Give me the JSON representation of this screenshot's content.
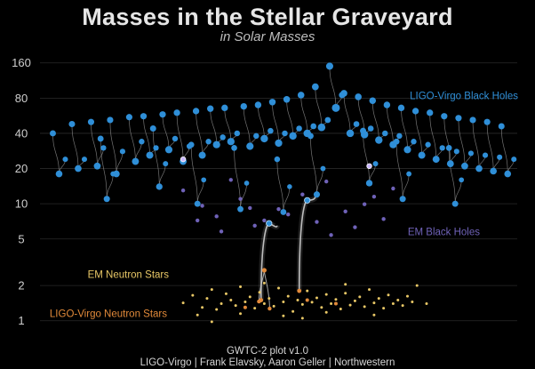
{
  "title": "Masses in the Stellar Graveyard",
  "subtitle": "in Solar Masses",
  "footer": {
    "line1": "GWTC-2 plot v1.0",
    "line2": "LIGO-Virgo | Frank Elavsky, Aaron Geller | Northwestern"
  },
  "colors": {
    "background": "#000000",
    "ligo_bh": "#2f8fd8",
    "em_bh": "#6f62b8",
    "em_ns": "#e8c766",
    "ligo_ns": "#e28a3a",
    "mystery": "#c8b6ff",
    "merger_line": "#9a9a9a",
    "ns_merger_line": "#cfcfcf"
  },
  "chart_data": {
    "type": "scatter",
    "title": "Masses in the Stellar Graveyard",
    "subtitle": "in Solar Masses",
    "y_scale": "log",
    "yticks": [
      1,
      2,
      5,
      10,
      20,
      40,
      80,
      160
    ],
    "ylim": [
      0.85,
      200
    ],
    "grid": true,
    "series_labels": [
      {
        "name": "LIGO-Virgo Black Holes",
        "series": "ligo_bh",
        "y": 84
      },
      {
        "name": "EM Black Holes",
        "series": "em_bh",
        "y": 5.8
      },
      {
        "name": "EM Neutron Stars",
        "series": "em_ns",
        "y": 2.5
      },
      {
        "name": "LIGO-Virgo Neutron Stars",
        "series": "ligo_ns",
        "y": 1.15
      }
    ],
    "ligo_mergers": [
      {
        "x": 0.04,
        "m1": 40,
        "m2": 24,
        "mf": 18
      },
      {
        "x": 0.08,
        "m1": 48,
        "m2": 24,
        "mf": 20
      },
      {
        "x": 0.12,
        "m1": 50,
        "m2": 30,
        "mf": 21
      },
      {
        "x": 0.16,
        "m1": 52,
        "m2": 28,
        "mf": 18
      },
      {
        "x": 0.2,
        "m1": 55,
        "m2": 34,
        "mf": 23
      },
      {
        "x": 0.23,
        "m1": 56,
        "m2": 30,
        "mf": 26
      },
      {
        "x": 0.27,
        "m1": 58,
        "m2": 36,
        "mf": 29
      },
      {
        "x": 0.3,
        "m1": 60,
        "m2": 31,
        "mf": 23
      },
      {
        "x": 0.34,
        "m1": 62,
        "m2": 34,
        "mf": 26
      },
      {
        "x": 0.37,
        "m1": 65,
        "m2": 37,
        "mf": 32
      },
      {
        "x": 0.4,
        "m1": 66,
        "m2": 40,
        "mf": 34
      },
      {
        "x": 0.44,
        "m1": 68,
        "m2": 38,
        "mf": 31
      },
      {
        "x": 0.47,
        "m1": 70,
        "m2": 42,
        "mf": 36
      },
      {
        "x": 0.5,
        "m1": 74,
        "m2": 40,
        "mf": 33
      },
      {
        "x": 0.53,
        "m1": 78,
        "m2": 44,
        "mf": 38
      },
      {
        "x": 0.56,
        "m1": 85,
        "m2": 46,
        "mf": 40
      },
      {
        "x": 0.59,
        "m1": 100,
        "m2": 52,
        "mf": 45
      },
      {
        "x": 0.62,
        "m1": 150,
        "m2": 85,
        "mf": 66
      },
      {
        "x": 0.65,
        "m1": 88,
        "m2": 48,
        "mf": 40
      },
      {
        "x": 0.68,
        "m1": 82,
        "m2": 44,
        "mf": 39
      },
      {
        "x": 0.71,
        "m1": 76,
        "m2": 40,
        "mf": 35
      },
      {
        "x": 0.74,
        "m1": 70,
        "m2": 38,
        "mf": 32
      },
      {
        "x": 0.77,
        "m1": 66,
        "m2": 34,
        "mf": 29
      },
      {
        "x": 0.8,
        "m1": 62,
        "m2": 32,
        "mf": 26
      },
      {
        "x": 0.83,
        "m1": 60,
        "m2": 30,
        "mf": 24
      },
      {
        "x": 0.86,
        "m1": 56,
        "m2": 28,
        "mf": 22
      },
      {
        "x": 0.89,
        "m1": 54,
        "m2": 27,
        "mf": 21
      },
      {
        "x": 0.92,
        "m1": 52,
        "m2": 26,
        "mf": 20
      },
      {
        "x": 0.95,
        "m1": 50,
        "m2": 25,
        "mf": 19
      },
      {
        "x": 0.98,
        "m1": 46,
        "m2": 24,
        "mf": 18
      },
      {
        "x": 0.14,
        "m1": 36,
        "m2": 18,
        "mf": 11
      },
      {
        "x": 0.33,
        "m1": 32,
        "m2": 16,
        "mf": 10
      },
      {
        "x": 0.42,
        "m1": 30,
        "m2": 15,
        "mf": 9
      },
      {
        "x": 0.58,
        "m1": 38,
        "m2": 20,
        "mf": 12
      },
      {
        "x": 0.76,
        "m1": 34,
        "m2": 18,
        "mf": 11
      },
      {
        "x": 0.87,
        "m1": 30,
        "m2": 16,
        "mf": 10
      },
      {
        "x": 0.25,
        "m1": 44,
        "m2": 22,
        "mf": 14
      },
      {
        "x": 0.69,
        "m1": 42,
        "m2": 22,
        "mf": 15
      },
      {
        "x": 0.51,
        "m1": 24,
        "m2": 14,
        "mf": 8.5
      }
    ],
    "em_black_holes": [
      [
        0.3,
        13
      ],
      [
        0.34,
        9.6
      ],
      [
        0.37,
        7.8
      ],
      [
        0.4,
        16
      ],
      [
        0.42,
        11
      ],
      [
        0.45,
        6.5
      ],
      [
        0.47,
        7.2
      ],
      [
        0.5,
        9
      ],
      [
        0.55,
        12
      ],
      [
        0.58,
        7
      ],
      [
        0.61,
        5.4
      ],
      [
        0.64,
        8.6
      ],
      [
        0.66,
        6.3
      ],
      [
        0.68,
        9.9
      ],
      [
        0.7,
        11.5
      ],
      [
        0.72,
        7.4
      ],
      [
        0.74,
        13.5
      ],
      [
        0.38,
        5.8
      ],
      [
        0.52,
        8.1
      ],
      [
        0.6,
        15.5
      ],
      [
        0.33,
        7.2
      ],
      [
        0.44,
        9.2
      ]
    ],
    "em_neutron_stars": [
      [
        0.3,
        1.42
      ],
      [
        0.32,
        1.65
      ],
      [
        0.34,
        1.3
      ],
      [
        0.35,
        1.55
      ],
      [
        0.36,
        1.85
      ],
      [
        0.37,
        1.25
      ],
      [
        0.38,
        1.4
      ],
      [
        0.39,
        1.7
      ],
      [
        0.4,
        1.5
      ],
      [
        0.41,
        1.35
      ],
      [
        0.42,
        1.95
      ],
      [
        0.43,
        1.45
      ],
      [
        0.44,
        1.6
      ],
      [
        0.45,
        1.28
      ],
      [
        0.46,
        1.75
      ],
      [
        0.47,
        1.4
      ],
      [
        0.48,
        1.55
      ],
      [
        0.49,
        1.33
      ],
      [
        0.5,
        1.9
      ],
      [
        0.51,
        1.45
      ],
      [
        0.52,
        1.62
      ],
      [
        0.53,
        1.2
      ],
      [
        0.54,
        1.5
      ],
      [
        0.55,
        1.38
      ],
      [
        0.56,
        1.8
      ],
      [
        0.57,
        1.44
      ],
      [
        0.58,
        1.57
      ],
      [
        0.59,
        1.3
      ],
      [
        0.6,
        1.68
      ],
      [
        0.61,
        1.4
      ],
      [
        0.62,
        1.52
      ],
      [
        0.63,
        1.26
      ],
      [
        0.64,
        1.72
      ],
      [
        0.65,
        1.36
      ],
      [
        0.66,
        1.48
      ],
      [
        0.67,
        1.6
      ],
      [
        0.68,
        1.32
      ],
      [
        0.69,
        1.85
      ],
      [
        0.7,
        1.42
      ],
      [
        0.71,
        1.55
      ],
      [
        0.72,
        1.28
      ],
      [
        0.73,
        1.66
      ],
      [
        0.74,
        1.4
      ],
      [
        0.75,
        1.5
      ],
      [
        0.76,
        1.35
      ],
      [
        0.77,
        1.62
      ],
      [
        0.78,
        1.45
      ],
      [
        0.79,
        2.0
      ],
      [
        0.81,
        1.4
      ],
      [
        0.33,
        1.12
      ],
      [
        0.42,
        1.15
      ],
      [
        0.51,
        1.1
      ],
      [
        0.6,
        1.18
      ],
      [
        0.7,
        1.12
      ],
      [
        0.36,
        0.98
      ],
      [
        0.55,
        1.05
      ],
      [
        0.47,
        2.1
      ],
      [
        0.64,
        2.05
      ]
    ],
    "ligo_ns_merger": {
      "x": 0.47,
      "m1": 1.46,
      "m2": 1.27,
      "mf": 2.7
    },
    "ligo_ns_extra": [
      [
        0.56,
        1.5
      ],
      [
        0.62,
        1.4
      ],
      [
        0.43,
        1.3
      ]
    ],
    "ns_bh_mergers": [
      {
        "x": 0.48,
        "m1": 6.5,
        "m2": 1.5,
        "mf": 7.5,
        "top": 6.8
      },
      {
        "x": 0.56,
        "m1": 11.5,
        "m2": 1.8,
        "mf": 10.5,
        "top": 10.7
      }
    ],
    "mystery_objects": [
      [
        0.3,
        24
      ],
      [
        0.69,
        21
      ]
    ]
  }
}
